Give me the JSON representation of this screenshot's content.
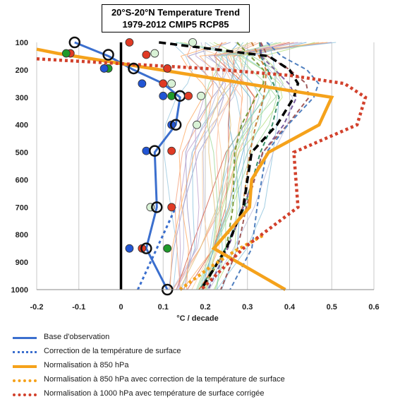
{
  "title": {
    "line1": "20°S-20°N Temperature Trend",
    "line2": "1979-2012 CMIP5 RCP85"
  },
  "chart_data": {
    "type": "line",
    "x_axis": {
      "label": "°C / decade",
      "range": [
        -0.2,
        0.6
      ],
      "ticks": [
        "-0.2",
        "-0.1",
        "0",
        "0.1",
        "0.2",
        "0.3",
        "0.4",
        "0.5",
        "0.6"
      ]
    },
    "y_axis": {
      "label": "",
      "range": [
        1000,
        100
      ],
      "reversed": true,
      "ticks": [
        "100",
        "200",
        "300",
        "400",
        "500",
        "600",
        "700",
        "800",
        "900",
        "1000"
      ]
    },
    "grid": true,
    "legend_position": "bottom",
    "pressure_levels": [
      100,
      150,
      200,
      250,
      300,
      400,
      500,
      700,
      850,
      1000
    ],
    "series": [
      {
        "name": "Base d'observation",
        "style": "solid",
        "color": "#3b6fce",
        "x": [
          -0.11,
          -0.03,
          0.03,
          0.1,
          0.14,
          0.13,
          0.08,
          0.085,
          0.06,
          0.11
        ],
        "y": [
          100,
          150,
          200,
          250,
          300,
          400,
          500,
          700,
          850,
          1000
        ]
      },
      {
        "name": "Correction de la température de surface",
        "style": "dotted",
        "color": "#3b6fce",
        "x": [
          0.04,
          0.07,
          0.1,
          0.13
        ],
        "y": [
          1000,
          900,
          800,
          700
        ]
      },
      {
        "name": "Normalisation à 850 hPa",
        "style": "solid",
        "color": "#f5a21b",
        "x": [
          -0.2,
          -0.15,
          0.5,
          0.47,
          0.35,
          0.31,
          0.305,
          0.22,
          0.39
        ],
        "y": [
          125,
          140,
          300,
          400,
          500,
          600,
          700,
          850,
          1000
        ]
      },
      {
        "name": "Normalisation à 850 hPa avec correction de la température de surface",
        "style": "dotted",
        "color": "#f5a21b",
        "x": [
          0.14,
          0.21,
          0.27,
          0.34
        ],
        "y": [
          1000,
          920,
          860,
          800
        ]
      },
      {
        "name": "Normalisation à 1000 hPa avec température de surface corrigée",
        "style": "dotted",
        "color": "#d2412c",
        "x": [
          -0.2,
          0.2,
          0.4,
          0.53,
          0.58,
          0.56,
          0.41,
          0.42,
          0.29,
          0.19
        ],
        "y": [
          160,
          195,
          220,
          250,
          300,
          400,
          500,
          700,
          850,
          1000
        ]
      }
    ],
    "ensemble_mean": {
      "style": "dashed",
      "color": "#000000",
      "x": [
        0.09,
        0.35,
        0.4,
        0.42,
        0.41,
        0.37,
        0.31,
        0.29,
        0.25,
        0.19
      ],
      "y": [
        100,
        150,
        200,
        250,
        300,
        400,
        500,
        700,
        850,
        1000
      ]
    },
    "observation_markers": [
      {
        "x": -0.11,
        "y": 100,
        "fill": "none"
      },
      {
        "x": 0.02,
        "y": 100,
        "fill": "#e03a24"
      },
      {
        "x": 0.17,
        "y": 100,
        "fill": "#d9f2d6"
      },
      {
        "x": -0.12,
        "y": 140,
        "fill": "#e03a24"
      },
      {
        "x": -0.13,
        "y": 140,
        "fill": "#1f9a2a"
      },
      {
        "x": -0.03,
        "y": 145,
        "fill": "none"
      },
      {
        "x": 0.06,
        "y": 145,
        "fill": "#e03a24"
      },
      {
        "x": 0.08,
        "y": 140,
        "fill": "#d9f2d6"
      },
      {
        "x": -0.03,
        "y": 195,
        "fill": "#1f9a2a"
      },
      {
        "x": -0.04,
        "y": 195,
        "fill": "#2255d4"
      },
      {
        "x": 0.03,
        "y": 195,
        "fill": "none"
      },
      {
        "x": 0.11,
        "y": 195,
        "fill": "#e03a24"
      },
      {
        "x": 0.05,
        "y": 250,
        "fill": "#2255d4"
      },
      {
        "x": 0.1,
        "y": 250,
        "fill": "#e03a24"
      },
      {
        "x": 0.12,
        "y": 250,
        "fill": "#d9f2d6"
      },
      {
        "x": 0.1,
        "y": 295,
        "fill": "#2255d4"
      },
      {
        "x": 0.12,
        "y": 295,
        "fill": "#1f9a2a"
      },
      {
        "x": 0.14,
        "y": 295,
        "fill": "none"
      },
      {
        "x": 0.16,
        "y": 295,
        "fill": "#e03a24"
      },
      {
        "x": 0.19,
        "y": 295,
        "fill": "#d9f2d6"
      },
      {
        "x": 0.12,
        "y": 400,
        "fill": "#2255d4"
      },
      {
        "x": 0.13,
        "y": 400,
        "fill": "none"
      },
      {
        "x": 0.18,
        "y": 400,
        "fill": "#d9f2d6"
      },
      {
        "x": 0.06,
        "y": 495,
        "fill": "#2255d4"
      },
      {
        "x": 0.08,
        "y": 495,
        "fill": "none"
      },
      {
        "x": 0.12,
        "y": 495,
        "fill": "#e03a24"
      },
      {
        "x": 0.07,
        "y": 700,
        "fill": "#d9f2d6"
      },
      {
        "x": 0.085,
        "y": 700,
        "fill": "none"
      },
      {
        "x": 0.12,
        "y": 700,
        "fill": "#e03a24"
      },
      {
        "x": 0.02,
        "y": 850,
        "fill": "#2255d4"
      },
      {
        "x": 0.05,
        "y": 850,
        "fill": "#e03a24"
      },
      {
        "x": 0.06,
        "y": 850,
        "fill": "none"
      },
      {
        "x": 0.11,
        "y": 850,
        "fill": "#1f9a2a"
      },
      {
        "x": 0.11,
        "y": 1000,
        "fill": "none"
      }
    ]
  },
  "legend": [
    {
      "label": "Base d'observation",
      "color": "#3b6fce",
      "style": "solid"
    },
    {
      "label": "Correction de la température de surface",
      "color": "#3b6fce",
      "style": "dotted"
    },
    {
      "label": "Normalisation à 850 hPa",
      "color": "#f5a21b",
      "style": "solid"
    },
    {
      "label": "Normalisation à 850 hPa avec correction de la température de surface",
      "color": "#f5a21b",
      "style": "dotted"
    },
    {
      "label": "Normalisation à 1000 hPa avec température de surface corrigée",
      "color": "#d2412c",
      "style": "dotted"
    }
  ]
}
